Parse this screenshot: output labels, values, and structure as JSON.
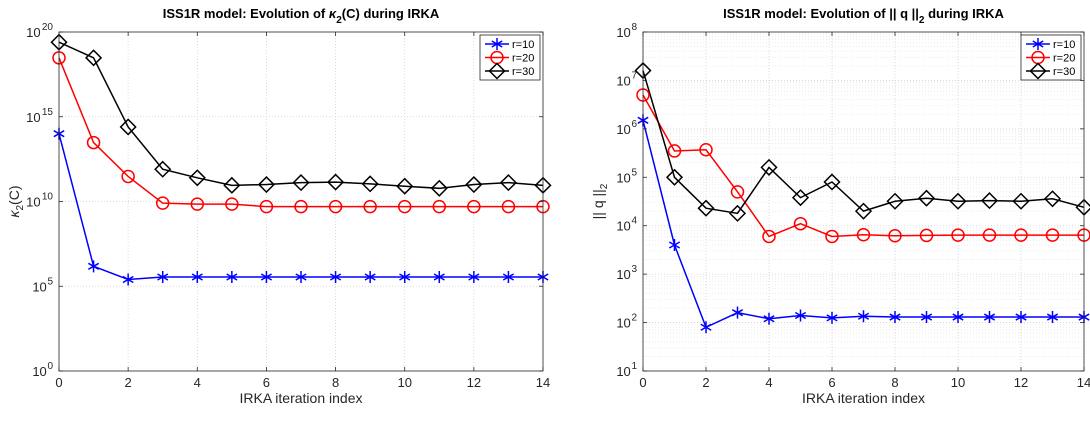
{
  "chart_data": [
    {
      "type": "line",
      "title": "ISS1R model: Evolution of κ2(C) during IRKA",
      "title_parts": [
        "ISS1R model: Evolution of ",
        "κ",
        "2",
        "(C) during IRKA"
      ],
      "xlabel": "IRKA iteration index",
      "ylabel": "κ2(C)",
      "ylabel_parts": [
        "κ",
        "2",
        "(C)"
      ],
      "yscale": "log",
      "xlim": [
        0,
        14
      ],
      "ylim": [
        1,
        1e+20
      ],
      "x_ticks": [
        0,
        2,
        4,
        6,
        8,
        10,
        12,
        14
      ],
      "x_tick_labels": [
        "0",
        "2",
        "4",
        "6",
        "8",
        "10",
        "12",
        "14"
      ],
      "y_ticks": [
        1,
        100000.0,
        10000000000.0,
        1000000000000000.0,
        1e+20
      ],
      "y_tick_labels": [
        [
          "10",
          "0"
        ],
        [
          "10",
          "5"
        ],
        [
          "10",
          "10"
        ],
        [
          "10",
          "15"
        ],
        [
          "10",
          "20"
        ]
      ],
      "grid": true,
      "minor_grid": false,
      "legend_position": "top-right",
      "x": [
        0,
        1,
        2,
        3,
        4,
        5,
        6,
        7,
        8,
        9,
        10,
        11,
        12,
        13,
        14
      ],
      "series": [
        {
          "name": "r=10",
          "color": "#0000ff",
          "marker": "asterisk",
          "values": [
            100000000000000.0,
            1500000.0,
            250000.0,
            350000.0,
            350000.0,
            350000.0,
            350000.0,
            350000.0,
            350000.0,
            350000.0,
            350000.0,
            350000.0,
            350000.0,
            350000.0,
            350000.0
          ]
        },
        {
          "name": "r=20",
          "color": "#ff0000",
          "marker": "circle",
          "values": [
            3e+18,
            30000000000000.0,
            300000000000.0,
            8000000000.0,
            7000000000.0,
            7000000000.0,
            5000000000.0,
            5000000000.0,
            5000000000.0,
            5000000000.0,
            5000000000.0,
            5000000000.0,
            5000000000.0,
            5000000000.0,
            5000000000.0
          ]
        },
        {
          "name": "r=30",
          "color": "#000000",
          "marker": "diamond",
          "values": [
            2.5e+19,
            3e+18,
            250000000000000.0,
            800000000000.0,
            250000000000.0,
            90000000000.0,
            100000000000.0,
            130000000000.0,
            140000000000.0,
            110000000000.0,
            80000000000.0,
            60000000000.0,
            100000000000.0,
            130000000000.0,
            90000000000.0
          ]
        }
      ]
    },
    {
      "type": "line",
      "title": "ISS1R model: Evolution of || q ||2 during IRKA",
      "title_parts": [
        "ISS1R model: Evolution of || q ||",
        "2",
        " during IRKA"
      ],
      "xlabel": "IRKA iteration index",
      "ylabel": "|| q ||2",
      "ylabel_parts": [
        "|| q ||",
        "2",
        ""
      ],
      "yscale": "log",
      "xlim": [
        0,
        14
      ],
      "ylim": [
        10,
        100000000.0
      ],
      "x_ticks": [
        0,
        2,
        4,
        6,
        8,
        10,
        12,
        14
      ],
      "x_tick_labels": [
        "0",
        "2",
        "4",
        "6",
        "8",
        "10",
        "12",
        "14"
      ],
      "y_ticks": [
        10,
        100,
        1000,
        10000,
        100000,
        1000000,
        10000000,
        100000000
      ],
      "y_tick_labels": [
        [
          "10",
          "1"
        ],
        [
          "10",
          "2"
        ],
        [
          "10",
          "3"
        ],
        [
          "10",
          "4"
        ],
        [
          "10",
          "5"
        ],
        [
          "10",
          "6"
        ],
        [
          "10",
          "7"
        ],
        [
          "10",
          "8"
        ]
      ],
      "grid": true,
      "minor_grid": true,
      "legend_position": "top-right",
      "x": [
        0,
        1,
        2,
        3,
        4,
        5,
        6,
        7,
        8,
        9,
        10,
        11,
        12,
        13,
        14
      ],
      "series": [
        {
          "name": "r=10",
          "color": "#0000ff",
          "marker": "asterisk",
          "values": [
            1500000.0,
            4000,
            80,
            160,
            120,
            140,
            125,
            135,
            130,
            130,
            130,
            130,
            130,
            130,
            130
          ]
        },
        {
          "name": "r=20",
          "color": "#ff0000",
          "marker": "circle",
          "values": [
            5000000.0,
            350000.0,
            370000.0,
            50000.0,
            6000,
            11000.0,
            6000,
            6500,
            6200,
            6300,
            6400,
            6400,
            6400,
            6400,
            6400
          ]
        },
        {
          "name": "r=30",
          "color": "#000000",
          "marker": "diamond",
          "values": [
            16000000.0,
            100000.0,
            23000.0,
            18000.0,
            160000.0,
            38000.0,
            80000.0,
            20000.0,
            32000.0,
            37000.0,
            32000.0,
            33000.0,
            32000.0,
            36000.0,
            24000.0
          ]
        }
      ]
    }
  ]
}
